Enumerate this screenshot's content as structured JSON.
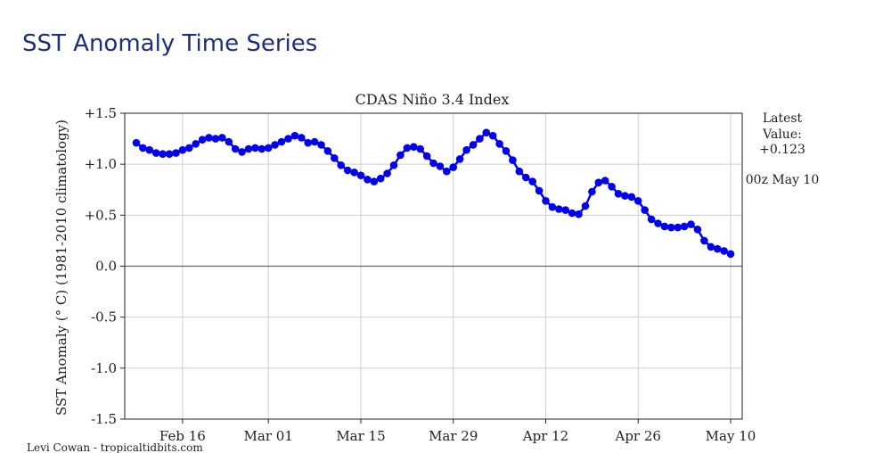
{
  "page": {
    "heading": "SST Anomaly Time Series"
  },
  "chart_data": {
    "type": "line",
    "title": "CDAS Niño 3.4 Index",
    "ylabel": "SST Anomaly (° C) (1981-2010 climatology)",
    "xlabel": "",
    "ylim": [
      -1.5,
      1.5
    ],
    "yticks": [
      1.5,
      1.0,
      0.5,
      0.0,
      -0.5,
      -1.0,
      -1.5
    ],
    "ytick_labels": [
      "+1.5",
      "+1.0",
      "+0.5",
      "0.0",
      "-0.5",
      "-1.0",
      "-1.5"
    ],
    "x_axis": {
      "type": "date",
      "start": "2023-02-09",
      "end": "2023-05-10",
      "ticks": [
        "2023-02-16",
        "2023-03-01",
        "2023-03-15",
        "2023-03-29",
        "2023-04-12",
        "2023-04-26",
        "2023-05-10"
      ],
      "tick_labels": [
        "Feb 16",
        "Mar 01",
        "Mar 15",
        "Mar 29",
        "Apr 12",
        "Apr 26",
        "May 10"
      ]
    },
    "grid": true,
    "zero_line": true,
    "series": [
      {
        "color": "#0000ee",
        "marker": "circle",
        "x": [
          "2023-02-09",
          "2023-02-10",
          "2023-02-11",
          "2023-02-12",
          "2023-02-13",
          "2023-02-14",
          "2023-02-15",
          "2023-02-16",
          "2023-02-17",
          "2023-02-18",
          "2023-02-19",
          "2023-02-20",
          "2023-02-21",
          "2023-02-22",
          "2023-02-23",
          "2023-02-24",
          "2023-02-25",
          "2023-02-26",
          "2023-02-27",
          "2023-02-28",
          "2023-03-01",
          "2023-03-02",
          "2023-03-03",
          "2023-03-04",
          "2023-03-05",
          "2023-03-06",
          "2023-03-07",
          "2023-03-08",
          "2023-03-09",
          "2023-03-10",
          "2023-03-11",
          "2023-03-12",
          "2023-03-13",
          "2023-03-14",
          "2023-03-15",
          "2023-03-16",
          "2023-03-17",
          "2023-03-18",
          "2023-03-19",
          "2023-03-20",
          "2023-03-21",
          "2023-03-22",
          "2023-03-23",
          "2023-03-24",
          "2023-03-25",
          "2023-03-26",
          "2023-03-27",
          "2023-03-28",
          "2023-03-29",
          "2023-03-30",
          "2023-03-31",
          "2023-04-01",
          "2023-04-02",
          "2023-04-03",
          "2023-04-04",
          "2023-04-05",
          "2023-04-06",
          "2023-04-07",
          "2023-04-08",
          "2023-04-09",
          "2023-04-10",
          "2023-04-11",
          "2023-04-12",
          "2023-04-13",
          "2023-04-14",
          "2023-04-15",
          "2023-04-16",
          "2023-04-17",
          "2023-04-18",
          "2023-04-19",
          "2023-04-20",
          "2023-04-21",
          "2023-04-22",
          "2023-04-23",
          "2023-04-24",
          "2023-04-25",
          "2023-04-26",
          "2023-04-27",
          "2023-04-28",
          "2023-04-29",
          "2023-04-30",
          "2023-05-01",
          "2023-05-02",
          "2023-05-03",
          "2023-05-04",
          "2023-05-05",
          "2023-05-06",
          "2023-05-07",
          "2023-05-08",
          "2023-05-09",
          "2023-05-10"
        ],
        "y": [
          1.21,
          1.16,
          1.14,
          1.11,
          1.1,
          1.1,
          1.11,
          1.14,
          1.16,
          1.2,
          1.24,
          1.26,
          1.25,
          1.26,
          1.22,
          1.15,
          1.12,
          1.15,
          1.16,
          1.15,
          1.16,
          1.19,
          1.22,
          1.25,
          1.28,
          1.26,
          1.21,
          1.22,
          1.19,
          1.13,
          1.06,
          0.99,
          0.94,
          0.92,
          0.89,
          0.85,
          0.83,
          0.86,
          0.91,
          0.99,
          1.09,
          1.16,
          1.17,
          1.15,
          1.08,
          1.01,
          0.98,
          0.93,
          0.97,
          1.05,
          1.14,
          1.19,
          1.25,
          1.31,
          1.28,
          1.2,
          1.13,
          1.04,
          0.93,
          0.87,
          0.83,
          0.74,
          0.64,
          0.58,
          0.56,
          0.55,
          0.52,
          0.51,
          0.59,
          0.73,
          0.82,
          0.84,
          0.78,
          0.71,
          0.69,
          0.68,
          0.64,
          0.55,
          0.46,
          0.42,
          0.39,
          0.38,
          0.38,
          0.39,
          0.41,
          0.36,
          0.25,
          0.19,
          0.17,
          0.15,
          0.12
        ]
      }
    ],
    "annotations": {
      "latest_label": "Latest",
      "value_label": "Value:",
      "latest_value": "+0.123",
      "timestamp": "00z May 10",
      "credit": "Levi Cowan - tropicaltidbits.com"
    }
  }
}
